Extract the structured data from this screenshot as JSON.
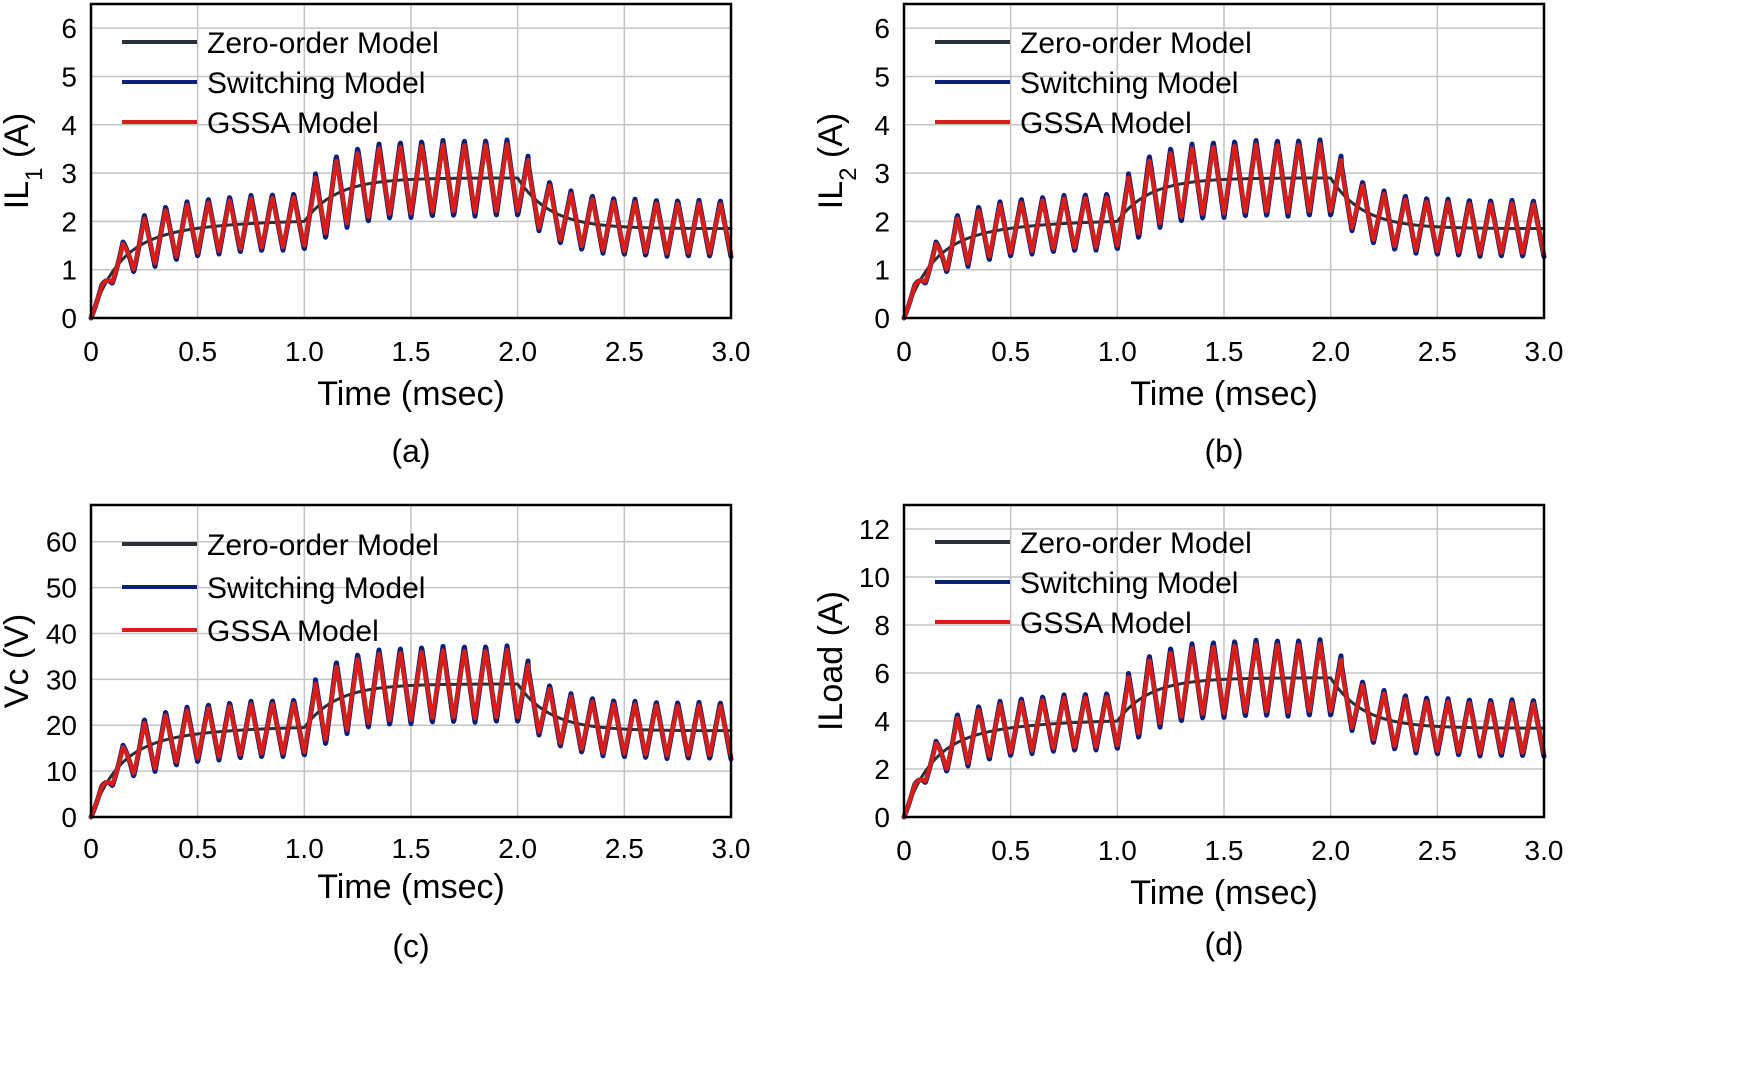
{
  "colors": {
    "zero_order": "#2b2f3a",
    "switching": "#0a1f7a",
    "gssa": "#d81e16"
  },
  "chart_data": [
    {
      "id": "a",
      "type": "line",
      "caption": "(a)",
      "ylabel_main": "IL",
      "ylabel_sub": "1",
      "ylabel_unit": " (A)",
      "xlabel": "Time (msec)",
      "xlim": [
        0,
        3
      ],
      "ylim": [
        0,
        6.5
      ],
      "xticks": [
        0,
        0.5,
        1,
        1.5,
        2,
        2.5,
        3
      ],
      "xtick_labels": [
        "0",
        "0.5",
        "1.0",
        "1.5",
        "2.0",
        "2.5",
        "3.0"
      ],
      "yticks": [
        0,
        1,
        2,
        3,
        4,
        5,
        6
      ],
      "ytick_labels": [
        "0",
        "1",
        "2",
        "3",
        "4",
        "5",
        "6"
      ],
      "legend": [
        "Zero-order Model",
        "Switching Model",
        "GSSA Model"
      ],
      "levels": [
        2.0,
        2.9,
        1.85
      ],
      "ripple": 0.52,
      "vc": false
    },
    {
      "id": "b",
      "type": "line",
      "caption": "(b)",
      "ylabel_main": "IL",
      "ylabel_sub": "2",
      "ylabel_unit": " (A)",
      "xlabel": "Time (msec)",
      "xlim": [
        0,
        3
      ],
      "ylim": [
        0,
        6.5
      ],
      "xticks": [
        0,
        0.5,
        1,
        1.5,
        2,
        2.5,
        3
      ],
      "xtick_labels": [
        "0",
        "0.5",
        "1.0",
        "1.5",
        "2.0",
        "2.5",
        "3.0"
      ],
      "yticks": [
        0,
        1,
        2,
        3,
        4,
        5,
        6
      ],
      "ytick_labels": [
        "0",
        "1",
        "2",
        "3",
        "4",
        "5",
        "6"
      ],
      "legend": [
        "Zero-order Model",
        "Switching Model",
        "GSSA Model"
      ],
      "levels": [
        2.0,
        2.9,
        1.85
      ],
      "ripple": 0.52,
      "vc": false
    },
    {
      "id": "c",
      "type": "line",
      "caption": "(c)",
      "ylabel_main": "Vc (V)",
      "ylabel_sub": "",
      "ylabel_unit": "",
      "xlabel": "Time (msec)",
      "xlim": [
        0,
        3
      ],
      "ylim": [
        0,
        68
      ],
      "xticks": [
        0,
        0.5,
        1,
        1.5,
        2,
        2.5,
        3
      ],
      "xtick_labels": [
        "0",
        "0.5",
        "1.0",
        "1.5",
        "2.0",
        "2.5",
        "3.0"
      ],
      "yticks": [
        0,
        10,
        20,
        30,
        40,
        50,
        60
      ],
      "ytick_labels": [
        "0",
        "10",
        "20",
        "30",
        "40",
        "50",
        "60"
      ],
      "legend": [
        "Zero-order Model",
        "Switching Model",
        "GSSA Model"
      ],
      "levels": [
        19.5,
        29,
        18.8
      ],
      "ripple": 5.5,
      "vc": true
    },
    {
      "id": "d",
      "type": "line",
      "caption": "(d)",
      "ylabel_main": "ILoad (A)",
      "ylabel_sub": "",
      "ylabel_unit": "",
      "xlabel": "Time (msec)",
      "xlim": [
        0,
        3
      ],
      "ylim": [
        0,
        13
      ],
      "xticks": [
        0,
        0.5,
        1,
        1.5,
        2,
        2.5,
        3
      ],
      "xtick_labels": [
        "0",
        "0.5",
        "1.0",
        "1.5",
        "2.0",
        "2.5",
        "3.0"
      ],
      "yticks": [
        0,
        2,
        4,
        6,
        8,
        10,
        12
      ],
      "ytick_labels": [
        "0",
        "2",
        "4",
        "6",
        "8",
        "10",
        "12"
      ],
      "legend": [
        "Zero-order Model",
        " Switching Model",
        "GSSA Model"
      ],
      "levels": [
        4.0,
        5.8,
        3.7
      ],
      "ripple": 1.05,
      "vc": false
    }
  ]
}
